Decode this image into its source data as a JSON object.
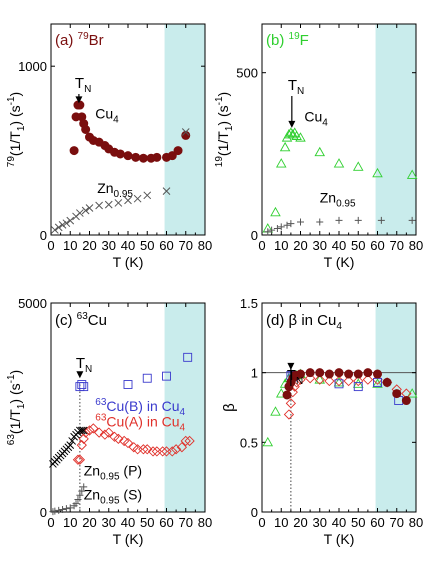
{
  "colors": {
    "shade": "#c9ecec",
    "brown": "#7a0e0e",
    "green": "#2fcf2f",
    "blue": "#3a3acd",
    "red": "#e0302a",
    "gray": "#555555",
    "black": "#000000"
  },
  "chart_data": [
    {
      "id": "a",
      "type": "scatter",
      "panel_label": "(a)",
      "nucleus": {
        "mass": "79",
        "element": "Br"
      },
      "xlabel": "T (K)",
      "ylabel": {
        "pre": "79",
        "main": "(1/T",
        "sub": "1",
        "post": ") (s",
        "sup": "-1",
        "end": ")"
      },
      "xlim": [
        0,
        80
      ],
      "ylim": [
        0,
        1250
      ],
      "xticks": [
        "0",
        "10",
        "20",
        "30",
        "40",
        "50",
        "60",
        "70",
        "80"
      ],
      "yticks": [
        {
          "v": 0,
          "label": "0"
        },
        {
          "v": 1000,
          "label": "1000"
        }
      ],
      "shade_from": 59,
      "annotations": {
        "tn": "T",
        "tn_sub": "N",
        "cu4": "Cu",
        "cu4_sub": "4",
        "zn": "Zn",
        "zn_sub": "0.95"
      },
      "series": [
        {
          "name": "Cu4",
          "marker": "filled-circle",
          "color_key": "brown",
          "x": [
            12,
            13,
            14,
            15,
            16,
            17,
            18,
            20,
            22,
            25,
            28,
            30,
            33,
            36,
            40,
            44,
            48,
            52,
            55,
            60,
            63,
            66,
            70
          ],
          "y": [
            500,
            700,
            770,
            770,
            700,
            660,
            625,
            580,
            560,
            550,
            530,
            510,
            490,
            480,
            470,
            460,
            455,
            455,
            460,
            460,
            470,
            500,
            590
          ]
        },
        {
          "name": "Zn0.95",
          "marker": "cross",
          "color_key": "gray",
          "x": [
            2,
            4,
            6,
            8,
            10,
            13,
            15,
            18,
            20,
            25,
            30,
            35,
            40,
            45,
            50,
            60,
            70
          ],
          "y": [
            30,
            45,
            60,
            70,
            85,
            110,
            130,
            145,
            160,
            175,
            180,
            190,
            205,
            215,
            235,
            260,
            610
          ]
        }
      ]
    },
    {
      "id": "b",
      "type": "scatter",
      "panel_label": "(b)",
      "nucleus": {
        "mass": "19",
        "element": "F"
      },
      "xlabel": "T (K)",
      "ylabel": {
        "pre": "19",
        "main": "(1/T",
        "sub": "1",
        "post": ") (s",
        "sup": "-1",
        "end": ")"
      },
      "xlim": [
        0,
        80
      ],
      "ylim": [
        0,
        650
      ],
      "xticks": [
        "0",
        "10",
        "20",
        "30",
        "40",
        "50",
        "60",
        "70",
        "80"
      ],
      "yticks": [
        {
          "v": 0,
          "label": "0"
        },
        {
          "v": 500,
          "label": "500"
        }
      ],
      "shade_from": 59,
      "annotations": {
        "tn": "T",
        "tn_sub": "N",
        "cu4": "Cu",
        "cu4_sub": "4",
        "zn": "Zn",
        "zn_sub": "0.95"
      },
      "series": [
        {
          "name": "Cu4",
          "marker": "open-triangle",
          "color_key": "green",
          "x": [
            3,
            7,
            10,
            12,
            13,
            14,
            15,
            16,
            17,
            18,
            20,
            30,
            40,
            50,
            60,
            78
          ],
          "y": [
            20,
            70,
            220,
            270,
            300,
            310,
            315,
            310,
            315,
            305,
            300,
            255,
            220,
            210,
            190,
            185
          ]
        },
        {
          "name": "Zn0.95",
          "marker": "plus",
          "color_key": "gray",
          "x": [
            3,
            5,
            8,
            10,
            13,
            15,
            20,
            30,
            40,
            50,
            62,
            78
          ],
          "y": [
            10,
            15,
            20,
            25,
            30,
            35,
            40,
            40,
            45,
            45,
            45,
            45
          ]
        }
      ]
    },
    {
      "id": "c",
      "type": "scatter",
      "panel_label": "(c)",
      "nucleus": {
        "mass": "63",
        "element": "Cu"
      },
      "xlabel": "T (K)",
      "ylabel": {
        "pre": "63",
        "main": "(1/T",
        "sub": "1",
        "post": ") (s",
        "sup": "-1",
        "end": ")"
      },
      "xlim": [
        0,
        80
      ],
      "ylim": [
        0,
        5000
      ],
      "xticks": [
        "0",
        "10",
        "20",
        "30",
        "40",
        "50",
        "60",
        "70",
        "80"
      ],
      "yticks": [
        {
          "v": 0,
          "label": "0"
        },
        {
          "v": 5000,
          "label": "5000"
        }
      ],
      "shade_from": 59,
      "annotations": {
        "tn": "T",
        "tn_sub": "N",
        "cub_sup": "63",
        "cub_text": "Cu(B) in Cu",
        "cub_sub": "4",
        "cua_sup": "63",
        "cua_text": "Cu(A) in Cu",
        "cua_sub": "4",
        "znp": "Zn",
        "znp_sub": "0.95",
        "znp_tag": "(P)",
        "zns": "Zn",
        "zns_sub": "0.95",
        "zns_tag": "(S)"
      },
      "series": [
        {
          "name": "63Cu(B) in Cu4",
          "marker": "open-square",
          "color_key": "blue",
          "x": [
            15,
            16,
            17,
            40,
            50,
            60,
            71
          ],
          "y": [
            3000,
            3050,
            3000,
            3050,
            3200,
            3250,
            3700
          ]
        },
        {
          "name": "63Cu(A) in Cu4",
          "marker": "open-diamond",
          "color_key": "red",
          "x": [
            14,
            15,
            16,
            17,
            18,
            20,
            22,
            25,
            28,
            30,
            33,
            35,
            38,
            40,
            43,
            45,
            48,
            50,
            53,
            55,
            58,
            60,
            63,
            65,
            68,
            70,
            72
          ],
          "y": [
            1250,
            1250,
            1600,
            1750,
            1900,
            1950,
            2000,
            1900,
            1850,
            1900,
            1800,
            1750,
            1700,
            1650,
            1550,
            1500,
            1500,
            1500,
            1450,
            1450,
            1450,
            1450,
            1450,
            1500,
            1550,
            1700,
            1700
          ]
        },
        {
          "name": "Zn0.95 (P)",
          "marker": "cross",
          "color_key": "black",
          "x": [
            1,
            2,
            3,
            4,
            5,
            6,
            7,
            8,
            9,
            10,
            11,
            12,
            13,
            14,
            15,
            16,
            17
          ],
          "y": [
            1150,
            1200,
            1250,
            1300,
            1350,
            1400,
            1450,
            1500,
            1550,
            1600,
            1700,
            1800,
            1850,
            1900,
            1950,
            1950,
            1950
          ]
        },
        {
          "name": "Zn0.95 (S)",
          "marker": "plus",
          "color_key": "gray",
          "x": [
            1,
            2,
            4,
            6,
            8,
            10,
            12,
            13,
            14,
            15,
            16,
            17
          ],
          "y": [
            10,
            20,
            40,
            60,
            80,
            100,
            150,
            200,
            300,
            400,
            500,
            600
          ]
        }
      ]
    },
    {
      "id": "d",
      "type": "scatter",
      "panel_label": "(d)",
      "title": {
        "greek": "β",
        "text": " in Cu",
        "sub": "4"
      },
      "xlabel": "T (K)",
      "ylabel_text": "β",
      "xlim": [
        0,
        80
      ],
      "ylim": [
        0,
        1.5
      ],
      "xticks": [
        "0",
        "10",
        "20",
        "30",
        "40",
        "50",
        "60",
        "70",
        "80"
      ],
      "yticks": [
        {
          "v": 0,
          "label": "0"
        },
        {
          "v": 0.5,
          "label": "0.5"
        },
        {
          "v": 1,
          "label": "1"
        },
        {
          "v": 1.5,
          "label": "1.5"
        }
      ],
      "shade_from": 59,
      "hline": 1,
      "annotations": {
        "tn": "T",
        "tn_sub": "N"
      },
      "series": [
        {
          "name": "19F",
          "marker": "open-triangle",
          "color_key": "green",
          "x": [
            3,
            7,
            10,
            12,
            14,
            16,
            18,
            20,
            30,
            40,
            50,
            60,
            78
          ],
          "y": [
            0.5,
            0.72,
            0.85,
            0.92,
            0.96,
            0.98,
            0.98,
            0.99,
            0.95,
            0.93,
            0.92,
            0.92,
            0.85
          ]
        },
        {
          "name": "63Cu(A)",
          "marker": "open-diamond",
          "color_key": "red",
          "x": [
            14,
            15,
            16,
            17,
            18,
            20,
            25,
            30,
            35,
            40,
            45,
            50,
            55,
            60,
            65,
            70,
            75
          ],
          "y": [
            0.7,
            0.78,
            0.86,
            0.9,
            0.93,
            0.95,
            0.96,
            0.95,
            0.94,
            0.94,
            0.94,
            0.94,
            0.95,
            0.95,
            0.93,
            0.88,
            0.85
          ]
        },
        {
          "name": "63Cu(B)",
          "marker": "open-square",
          "color_key": "blue",
          "x": [
            15,
            16,
            17,
            40,
            50,
            60,
            71
          ],
          "y": [
            0.98,
            0.97,
            0.98,
            0.92,
            0.9,
            0.93,
            0.8
          ]
        },
        {
          "name": "79Br",
          "marker": "filled-circle",
          "color_key": "brown",
          "x": [
            13,
            14,
            15,
            16,
            17,
            18,
            20,
            25,
            30,
            35,
            40,
            45,
            50,
            55,
            60,
            65,
            70,
            75
          ],
          "y": [
            0.84,
            0.9,
            0.93,
            0.96,
            0.98,
            0.98,
            0.99,
            1.0,
            1.0,
            0.99,
            1.0,
            0.99,
            0.99,
            1.0,
            0.99,
            0.93,
            0.85,
            0.8
          ]
        }
      ]
    }
  ]
}
